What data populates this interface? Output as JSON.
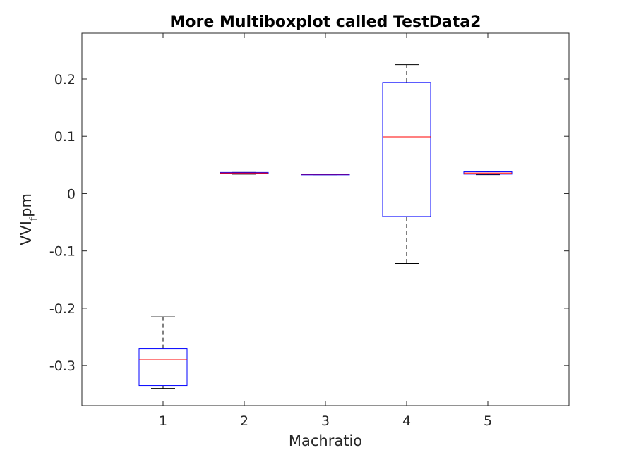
{
  "chart_data": {
    "type": "box",
    "title": "More Multiboxplot called TestData2",
    "xlabel": "Machratio",
    "ylabel": {
      "main": "VVI",
      "subscript": "f",
      "suffix": "pm"
    },
    "categories": [
      "1",
      "2",
      "3",
      "4",
      "5"
    ],
    "ylim": [
      -0.37,
      0.28
    ],
    "yticks": [
      -0.3,
      -0.2,
      -0.1,
      0,
      0.1,
      0.2
    ],
    "ytick_labels": [
      "-0.3",
      "-0.2",
      "-0.1",
      "0",
      "0.1",
      "0.2"
    ],
    "grid": false,
    "boxes": [
      {
        "category": "1",
        "whisker_low": -0.34,
        "q1": -0.335,
        "median": -0.29,
        "q3": -0.271,
        "whisker_high": -0.215
      },
      {
        "category": "2",
        "whisker_low": 0.034,
        "q1": 0.035,
        "median": 0.036,
        "q3": 0.037,
        "whisker_high": 0.037
      },
      {
        "category": "3",
        "whisker_low": 0.033,
        "q1": 0.033,
        "median": 0.034,
        "q3": 0.034,
        "whisker_high": 0.034
      },
      {
        "category": "4",
        "whisker_low": -0.122,
        "q1": -0.04,
        "median": 0.099,
        "q3": 0.194,
        "whisker_high": 0.225
      },
      {
        "category": "5",
        "whisker_low": 0.033,
        "q1": 0.034,
        "median": 0.036,
        "q3": 0.038,
        "whisker_high": 0.039
      }
    ],
    "colors": {
      "box": "#0000ff",
      "median": "#ff0000",
      "whisker": "#000000",
      "axis": "#262626"
    }
  }
}
